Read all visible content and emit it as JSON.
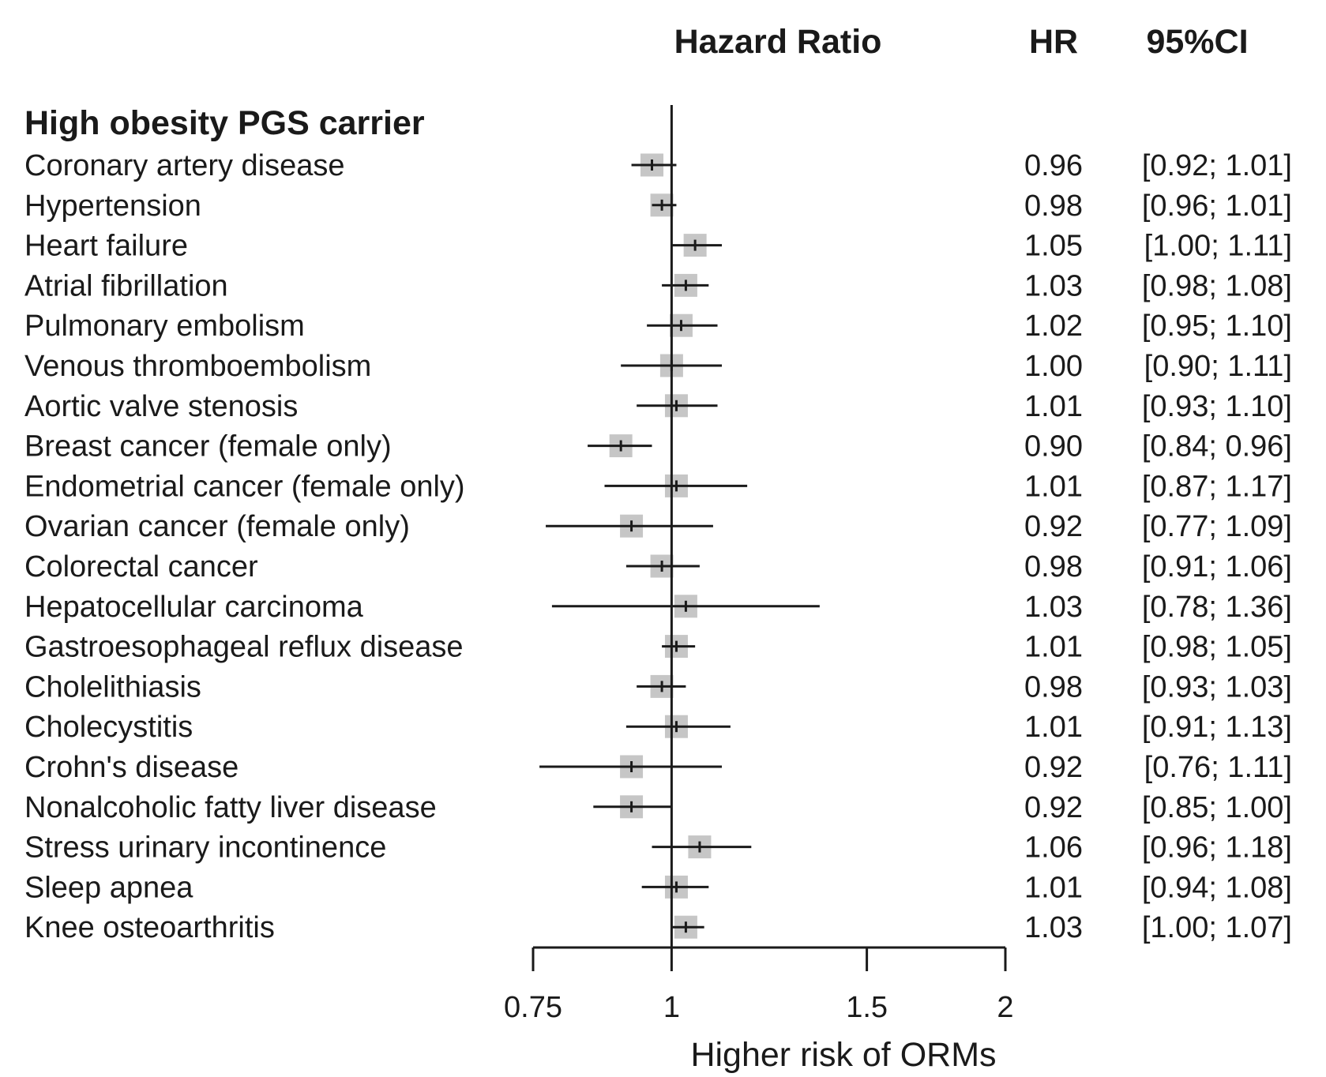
{
  "chart_data": {
    "type": "forest",
    "title": "Hazard Ratio",
    "hr_header": "HR",
    "ci_header": "95%CI",
    "group_label": "High obesity PGS carrier",
    "xlabel": "Higher risk of ORMs",
    "x_scale": "log",
    "xlim": [
      0.75,
      2
    ],
    "reference_line": 1,
    "ticks": [
      {
        "value": 0.75,
        "label": "0.75"
      },
      {
        "value": 1,
        "label": "1"
      },
      {
        "value": 1.5,
        "label": "1.5"
      },
      {
        "value": 2,
        "label": "2"
      }
    ],
    "rows": [
      {
        "name": "Coronary artery disease",
        "hr": 0.96,
        "lo": 0.92,
        "hi": 1.01,
        "hr_text": "0.96",
        "ci_text": "[0.92; 1.01]"
      },
      {
        "name": "Hypertension",
        "hr": 0.98,
        "lo": 0.96,
        "hi": 1.01,
        "hr_text": "0.98",
        "ci_text": "[0.96; 1.01]"
      },
      {
        "name": "Heart failure",
        "hr": 1.05,
        "lo": 1.0,
        "hi": 1.11,
        "hr_text": "1.05",
        "ci_text": "[1.00; 1.11]"
      },
      {
        "name": "Atrial fibrillation",
        "hr": 1.03,
        "lo": 0.98,
        "hi": 1.08,
        "hr_text": "1.03",
        "ci_text": "[0.98; 1.08]"
      },
      {
        "name": "Pulmonary embolism",
        "hr": 1.02,
        "lo": 0.95,
        "hi": 1.1,
        "hr_text": "1.02",
        "ci_text": "[0.95; 1.10]"
      },
      {
        "name": "Venous thromboembolism",
        "hr": 1.0,
        "lo": 0.9,
        "hi": 1.11,
        "hr_text": "1.00",
        "ci_text": "[0.90; 1.11]"
      },
      {
        "name": "Aortic valve stenosis",
        "hr": 1.01,
        "lo": 0.93,
        "hi": 1.1,
        "hr_text": "1.01",
        "ci_text": "[0.93; 1.10]"
      },
      {
        "name": "Breast cancer (female only)",
        "hr": 0.9,
        "lo": 0.84,
        "hi": 0.96,
        "hr_text": "0.90",
        "ci_text": "[0.84; 0.96]"
      },
      {
        "name": "Endometrial cancer (female only)",
        "hr": 1.01,
        "lo": 0.87,
        "hi": 1.17,
        "hr_text": "1.01",
        "ci_text": "[0.87; 1.17]"
      },
      {
        "name": "Ovarian cancer (female only)",
        "hr": 0.92,
        "lo": 0.77,
        "hi": 1.09,
        "hr_text": "0.92",
        "ci_text": "[0.77; 1.09]"
      },
      {
        "name": "Colorectal cancer",
        "hr": 0.98,
        "lo": 0.91,
        "hi": 1.06,
        "hr_text": "0.98",
        "ci_text": "[0.91; 1.06]"
      },
      {
        "name": "Hepatocellular carcinoma",
        "hr": 1.03,
        "lo": 0.78,
        "hi": 1.36,
        "hr_text": "1.03",
        "ci_text": "[0.78; 1.36]"
      },
      {
        "name": "Gastroesophageal reflux disease",
        "hr": 1.01,
        "lo": 0.98,
        "hi": 1.05,
        "hr_text": "1.01",
        "ci_text": "[0.98; 1.05]"
      },
      {
        "name": "Cholelithiasis",
        "hr": 0.98,
        "lo": 0.93,
        "hi": 1.03,
        "hr_text": "0.98",
        "ci_text": "[0.93; 1.03]"
      },
      {
        "name": "Cholecystitis",
        "hr": 1.01,
        "lo": 0.91,
        "hi": 1.13,
        "hr_text": "1.01",
        "ci_text": "[0.91; 1.13]"
      },
      {
        "name": "Crohn's disease",
        "hr": 0.92,
        "lo": 0.76,
        "hi": 1.11,
        "hr_text": "0.92",
        "ci_text": "[0.76; 1.11]"
      },
      {
        "name": "Nonalcoholic fatty liver disease",
        "hr": 0.92,
        "lo": 0.85,
        "hi": 1.0,
        "hr_text": "0.92",
        "ci_text": "[0.85; 1.00]"
      },
      {
        "name": "Stress urinary incontinence",
        "hr": 1.06,
        "lo": 0.96,
        "hi": 1.18,
        "hr_text": "1.06",
        "ci_text": "[0.96; 1.18]"
      },
      {
        "name": "Sleep apnea",
        "hr": 1.01,
        "lo": 0.94,
        "hi": 1.08,
        "hr_text": "1.01",
        "ci_text": "[0.94; 1.08]"
      },
      {
        "name": "Knee osteoarthritis",
        "hr": 1.03,
        "lo": 1.0,
        "hi": 1.07,
        "hr_text": "1.03",
        "ci_text": "[1.00; 1.07]"
      }
    ]
  }
}
